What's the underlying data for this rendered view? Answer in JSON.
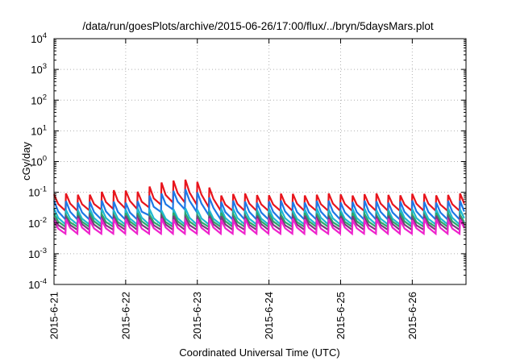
{
  "chart_data": {
    "type": "line",
    "title": "/data/run/goesPlots/archive/2015-06-26/17:00/flux/../bryn/5daysMars.plot",
    "xlabel": "Coordinated Universal Time (UTC)",
    "ylabel": "cGy/day",
    "yscale": "log",
    "ylim": [
      0.0001,
      10000
    ],
    "xlim": [
      "2015-06-21 00:00",
      "2015-06-26 18:00"
    ],
    "grid": true,
    "x_ticks": [
      "2015-6-21",
      "2015-6-22",
      "2015-6-23",
      "2015-6-24",
      "2015-6-25",
      "2015-6-26"
    ],
    "y_ticks": [
      {
        "base": "10",
        "exp": "-4"
      },
      {
        "base": "10",
        "exp": "-3"
      },
      {
        "base": "10",
        "exp": "-2"
      },
      {
        "base": "10",
        "exp": "-1"
      },
      {
        "base": "10",
        "exp": "0"
      },
      {
        "base": "10",
        "exp": "1"
      },
      {
        "base": "10",
        "exp": "2"
      },
      {
        "base": "10",
        "exp": "3"
      },
      {
        "base": "10",
        "exp": "4"
      }
    ],
    "cycle_hours": 4,
    "series": [
      {
        "color": "#e8141c",
        "peak": 0.085,
        "trough": 0.025,
        "event": [
          {
            "x": "2015-06-22 18:00",
            "peak": 0.29,
            "trough": 0.05
          },
          {
            "x": "2015-06-22 00:00",
            "peak": 0.12,
            "trough": 0.03
          }
        ]
      },
      {
        "color": "#1e78e6",
        "peak": 0.05,
        "trough": 0.013,
        "event": [
          {
            "x": "2015-06-22 18:00",
            "peak": 0.13,
            "trough": 0.03
          }
        ]
      },
      {
        "color": "#20b8d0",
        "peak": 0.028,
        "trough": 0.009,
        "event": []
      },
      {
        "color": "#2aa86a",
        "peak": 0.02,
        "trough": 0.0075,
        "event": []
      },
      {
        "color": "#7a3c7a",
        "peak": 0.016,
        "trough": 0.006,
        "event": []
      },
      {
        "color": "#ee22cc",
        "peak": 0.013,
        "trough": 0.0045,
        "event": []
      }
    ]
  }
}
